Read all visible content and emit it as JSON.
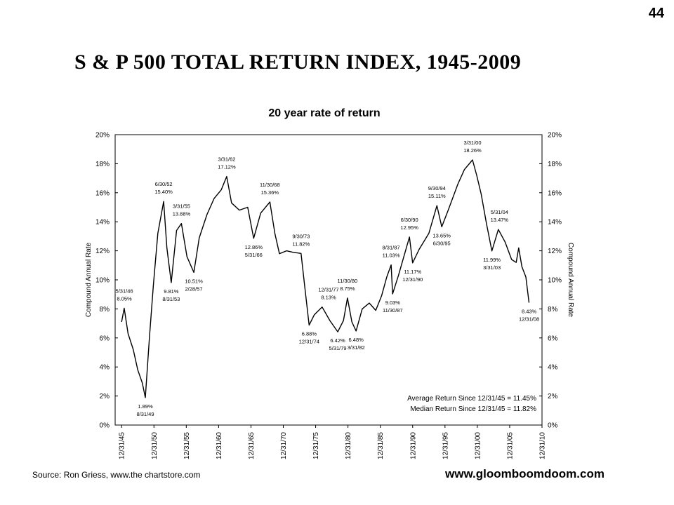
{
  "page_number": "44",
  "title": "S & P  500  TOTAL  RETURN  INDEX, 1945-2009",
  "subtitle": "20 year rate of return",
  "source": "Source: Ron Griess, www.the chartstore.com",
  "website": "www.gloomboomdoom.com",
  "chart_data": {
    "type": "line",
    "ylabel_left": "Compound Annual Rate",
    "ylabel_right": "Compound Annual Rate",
    "ylim": [
      0,
      20
    ],
    "xlim": [
      1945.0,
      2011.0
    ],
    "y_ticks": [
      "0%",
      "2%",
      "4%",
      "6%",
      "8%",
      "10%",
      "12%",
      "14%",
      "16%",
      "18%",
      "20%"
    ],
    "x_ticks": [
      {
        "label": "12/31/45",
        "value": 1946.0
      },
      {
        "label": "12/31/50",
        "value": 1951.0
      },
      {
        "label": "12/31/55",
        "value": 1956.0
      },
      {
        "label": "12/31/60",
        "value": 1961.0
      },
      {
        "label": "12/31/65",
        "value": 1966.0
      },
      {
        "label": "12/31/70",
        "value": 1971.0
      },
      {
        "label": "12/31/75",
        "value": 1976.0
      },
      {
        "label": "12/31/80",
        "value": 1981.0
      },
      {
        "label": "12/31/85",
        "value": 1986.0
      },
      {
        "label": "12/31/90",
        "value": 1991.0
      },
      {
        "label": "12/31/95",
        "value": 1996.0
      },
      {
        "label": "12/31/00",
        "value": 2001.0
      },
      {
        "label": "12/31/05",
        "value": 2006.0
      },
      {
        "label": "12/31/10",
        "value": 2011.0
      }
    ],
    "series": [
      {
        "color": "#000000",
        "points": [
          [
            1946.0,
            7.1
          ],
          [
            1946.4,
            8.05
          ],
          [
            1947.0,
            6.3
          ],
          [
            1947.8,
            5.2
          ],
          [
            1948.5,
            3.8
          ],
          [
            1949.2,
            2.9
          ],
          [
            1949.67,
            1.89
          ],
          [
            1950.3,
            6.0
          ],
          [
            1950.9,
            9.6
          ],
          [
            1951.6,
            13.2
          ],
          [
            1952.5,
            15.4
          ],
          [
            1953.0,
            12.2
          ],
          [
            1953.67,
            9.81
          ],
          [
            1954.5,
            13.4
          ],
          [
            1955.25,
            13.88
          ],
          [
            1956.1,
            11.6
          ],
          [
            1957.17,
            10.51
          ],
          [
            1958.0,
            12.9
          ],
          [
            1959.2,
            14.5
          ],
          [
            1960.3,
            15.6
          ],
          [
            1961.4,
            16.2
          ],
          [
            1962.25,
            17.12
          ],
          [
            1963.0,
            15.3
          ],
          [
            1964.2,
            14.8
          ],
          [
            1965.5,
            15.0
          ],
          [
            1966.42,
            12.86
          ],
          [
            1967.5,
            14.6
          ],
          [
            1968.92,
            15.36
          ],
          [
            1969.7,
            13.2
          ],
          [
            1970.4,
            11.8
          ],
          [
            1971.5,
            12.0
          ],
          [
            1972.5,
            11.9
          ],
          [
            1973.75,
            11.82
          ],
          [
            1974.3,
            9.6
          ],
          [
            1974.99,
            6.88
          ],
          [
            1975.8,
            7.6
          ],
          [
            1977.0,
            8.13
          ],
          [
            1978.2,
            7.2
          ],
          [
            1979.42,
            6.42
          ],
          [
            1980.3,
            7.2
          ],
          [
            1980.92,
            8.75
          ],
          [
            1981.6,
            7.1
          ],
          [
            1982.25,
            6.48
          ],
          [
            1983.2,
            8.0
          ],
          [
            1984.3,
            8.4
          ],
          [
            1985.3,
            7.9
          ],
          [
            1986.2,
            8.9
          ],
          [
            1987.0,
            10.2
          ],
          [
            1987.67,
            11.03
          ],
          [
            1987.9,
            9.03
          ],
          [
            1988.8,
            10.3
          ],
          [
            1990.5,
            12.95
          ],
          [
            1990.99,
            11.17
          ],
          [
            1992.0,
            12.1
          ],
          [
            1993.5,
            13.2
          ],
          [
            1994.75,
            15.11
          ],
          [
            1995.5,
            13.65
          ],
          [
            1996.5,
            14.8
          ],
          [
            1998.0,
            16.6
          ],
          [
            1999.0,
            17.6
          ],
          [
            2000.25,
            18.26
          ],
          [
            2000.9,
            17.2
          ],
          [
            2001.6,
            15.9
          ],
          [
            2002.4,
            13.9
          ],
          [
            2003.25,
            11.99
          ],
          [
            2004.25,
            13.47
          ],
          [
            2005.3,
            12.6
          ],
          [
            2006.3,
            11.4
          ],
          [
            2007.0,
            11.2
          ],
          [
            2007.4,
            12.2
          ],
          [
            2007.9,
            10.9
          ],
          [
            2008.5,
            10.2
          ],
          [
            2008.99,
            8.43
          ]
        ]
      }
    ],
    "annotations": [
      {
        "date": "5/31/46",
        "value": "8.05%",
        "pos": "above"
      },
      {
        "date": "8/31/49",
        "value": "1.89%",
        "pos": "below"
      },
      {
        "date": "6/30/52",
        "value": "15.40%",
        "pos": "above"
      },
      {
        "date": "8/31/53",
        "value": "9.81%",
        "pos": "below"
      },
      {
        "date": "3/31/55",
        "value": "13.88%",
        "pos": "above"
      },
      {
        "date": "2/28/57",
        "value": "10.51%",
        "pos": "below"
      },
      {
        "date": "3/31/62",
        "value": "17.12%",
        "pos": "above"
      },
      {
        "date": "5/31/66",
        "value": "12.86%",
        "pos": "below"
      },
      {
        "date": "11/30/68",
        "value": "15.36%",
        "pos": "above"
      },
      {
        "date": "9/30/73",
        "value": "11.82%",
        "pos": "above"
      },
      {
        "date": "12/31/74",
        "value": "6.88%",
        "pos": "below"
      },
      {
        "date": "12/31/77",
        "value": "8.13%",
        "pos": "above"
      },
      {
        "date": "5/31/79",
        "value": "6.42%",
        "pos": "below"
      },
      {
        "date": "11/30/80",
        "value": "8.75%",
        "pos": "above"
      },
      {
        "date": "3/31/82",
        "value": "6.48%",
        "pos": "below"
      },
      {
        "date": "8/31/87",
        "value": "11.03%",
        "pos": "above"
      },
      {
        "date": "11/30/87",
        "value": "9.03%",
        "pos": "below"
      },
      {
        "date": "6/30/90",
        "value": "12.95%",
        "pos": "above"
      },
      {
        "date": "12/31/90",
        "value": "11.17%",
        "pos": "below"
      },
      {
        "date": "9/30/94",
        "value": "15.11%",
        "pos": "above"
      },
      {
        "date": "6/30/95",
        "value": "13.65%",
        "pos": "below"
      },
      {
        "date": "3/31/00",
        "value": "18.26%",
        "pos": "above"
      },
      {
        "date": "3/31/03",
        "value": "11.99%",
        "pos": "below"
      },
      {
        "date": "5/31/04",
        "value": "13.47%",
        "pos": "above"
      },
      {
        "date": "12/31/08",
        "value": "8.43%",
        "pos": "below"
      }
    ],
    "stats": [
      "Average Return Since 12/31/45 = 11.45%",
      "Median Return Since 12/31/45 = 11.82%"
    ],
    "grid": false,
    "legend": "none"
  }
}
